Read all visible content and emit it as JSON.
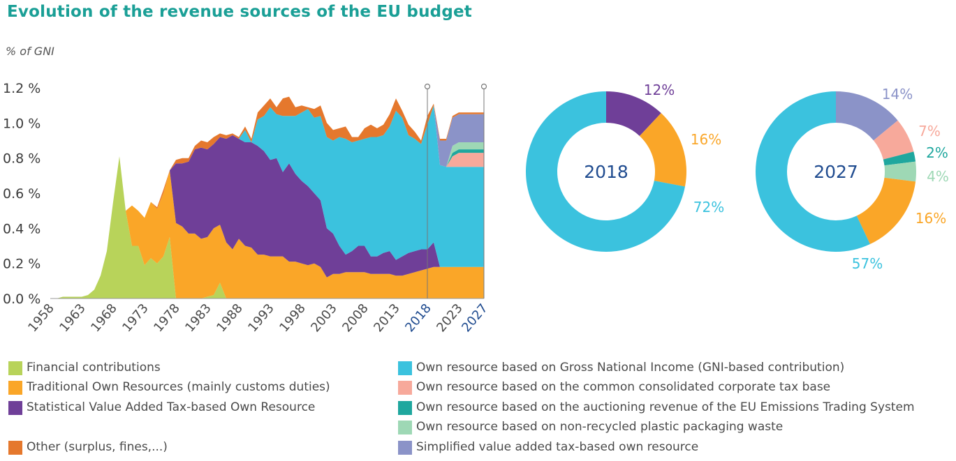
{
  "title": "Evolution of the revenue sources of the EU budget",
  "unit_label": "% of GNI",
  "colors": {
    "financial": "#b8d35a",
    "tor": "#faa628",
    "vat": "#6f3f98",
    "other": "#e5782d",
    "gni": "#3bc2de",
    "ccctb": "#f7a99b",
    "ets": "#1fa79e",
    "plastic": "#9ed8b5",
    "svat": "#8b93c8",
    "year_highlight": "#1f4b8f"
  },
  "chart_data": [
    {
      "type": "area",
      "stacked": true,
      "ylabel": "% of GNI",
      "ylim": [
        0,
        1.2
      ],
      "yticks": [
        "0.0 %",
        "0.2 %",
        "0.4 %",
        "0.6 %",
        "0.8 %",
        "1.0 %",
        "1.2 %"
      ],
      "ytick_values": [
        0,
        0.2,
        0.4,
        0.6,
        0.8,
        1.0,
        1.2
      ],
      "xticks": [
        "1958",
        "1963",
        "1968",
        "1973",
        "1978",
        "1983",
        "1988",
        "1993",
        "1998",
        "2003",
        "2008",
        "2013",
        "2018",
        "2023",
        "2027"
      ],
      "xtick_values": [
        1958,
        1963,
        1968,
        1973,
        1978,
        1983,
        1988,
        1993,
        1998,
        2003,
        2008,
        2013,
        2018,
        2023,
        2027
      ],
      "highlighted_years": [
        2018,
        2027
      ],
      "x": [
        1958,
        1959,
        1960,
        1961,
        1962,
        1963,
        1964,
        1965,
        1966,
        1967,
        1968,
        1969,
        1970,
        1971,
        1972,
        1973,
        1974,
        1975,
        1976,
        1977,
        1978,
        1979,
        1980,
        1981,
        1982,
        1983,
        1984,
        1985,
        1986,
        1987,
        1988,
        1989,
        1990,
        1991,
        1992,
        1993,
        1994,
        1995,
        1996,
        1997,
        1998,
        1999,
        2000,
        2001,
        2002,
        2003,
        2004,
        2005,
        2006,
        2007,
        2008,
        2009,
        2010,
        2011,
        2012,
        2013,
        2014,
        2015,
        2016,
        2017,
        2018,
        2019,
        2020,
        2021,
        2022,
        2023,
        2024,
        2025,
        2026,
        2027
      ],
      "series": [
        {
          "name": "Financial contributions",
          "key": "financial",
          "values": [
            0,
            0,
            0.01,
            0.01,
            0.01,
            0.01,
            0.02,
            0.05,
            0.13,
            0.27,
            0.55,
            0.81,
            0.5,
            0.3,
            0.3,
            0.19,
            0.23,
            0.2,
            0.24,
            0.35,
            0,
            0,
            0,
            0,
            0,
            0.01,
            0.02,
            0.09,
            0,
            0,
            0,
            0,
            0,
            0,
            0,
            0,
            0,
            0,
            0,
            0,
            0,
            0,
            0,
            0,
            0,
            0,
            0,
            0,
            0,
            0,
            0,
            0,
            0,
            0,
            0,
            0,
            0,
            0,
            0,
            0,
            0,
            0,
            0,
            0,
            0,
            0,
            0,
            0,
            0,
            0
          ]
        },
        {
          "name": "Traditional Own Resources (mainly customs duties)",
          "key": "tor",
          "values": [
            0,
            0,
            0,
            0,
            0,
            0,
            0,
            0,
            0,
            0,
            0,
            0,
            0,
            0.23,
            0.2,
            0.27,
            0.32,
            0.31,
            0.36,
            0.38,
            0.43,
            0.41,
            0.37,
            0.37,
            0.34,
            0.34,
            0.38,
            0.33,
            0.32,
            0.28,
            0.34,
            0.3,
            0.29,
            0.25,
            0.25,
            0.24,
            0.24,
            0.24,
            0.21,
            0.21,
            0.2,
            0.19,
            0.2,
            0.18,
            0.12,
            0.14,
            0.14,
            0.15,
            0.15,
            0.15,
            0.15,
            0.14,
            0.14,
            0.14,
            0.14,
            0.13,
            0.13,
            0.14,
            0.15,
            0.16,
            0.17,
            0.18,
            0.18,
            0.18,
            0.18,
            0.18,
            0.18,
            0.18,
            0.18,
            0.18
          ]
        },
        {
          "name": "Statistical Value Added Tax-based Own Resource",
          "key": "vat",
          "values": [
            0,
            0,
            0,
            0,
            0,
            0,
            0,
            0,
            0,
            0,
            0,
            0,
            0,
            0,
            0,
            0,
            0,
            0,
            0,
            0,
            0.34,
            0.36,
            0.41,
            0.48,
            0.52,
            0.5,
            0.48,
            0.5,
            0.59,
            0.65,
            0.57,
            0.59,
            0.6,
            0.62,
            0.59,
            0.55,
            0.56,
            0.48,
            0.56,
            0.5,
            0.47,
            0.45,
            0.4,
            0.38,
            0.28,
            0.23,
            0.16,
            0.1,
            0.12,
            0.15,
            0.15,
            0.1,
            0.1,
            0.12,
            0.13,
            0.09,
            0.11,
            0.12,
            0.12,
            0.12,
            0.11,
            0.14,
            0,
            0,
            0,
            0,
            0,
            0,
            0,
            0
          ]
        },
        {
          "name": "Own resource based on Gross National Income (GNI-based contribution)",
          "key": "gni",
          "values": [
            0,
            0,
            0,
            0,
            0,
            0,
            0,
            0,
            0,
            0,
            0,
            0,
            0,
            0,
            0,
            0,
            0,
            0,
            0,
            0,
            0,
            0,
            0,
            0,
            0,
            0,
            0,
            0,
            0,
            0,
            0,
            0.07,
            0,
            0.15,
            0.2,
            0.3,
            0.25,
            0.32,
            0.27,
            0.33,
            0.39,
            0.44,
            0.43,
            0.48,
            0.52,
            0.53,
            0.62,
            0.66,
            0.62,
            0.6,
            0.61,
            0.68,
            0.68,
            0.67,
            0.71,
            0.85,
            0.79,
            0.67,
            0.64,
            0.6,
            0.71,
            0.78,
            0.58,
            0.57,
            0.57,
            0.57,
            0.57,
            0.57,
            0.57,
            0.57
          ]
        },
        {
          "name": "Own resource based on the common consolidated corporate tax base",
          "key": "ccctb",
          "values": [
            0,
            0,
            0,
            0,
            0,
            0,
            0,
            0,
            0,
            0,
            0,
            0,
            0,
            0,
            0,
            0,
            0,
            0,
            0,
            0,
            0,
            0,
            0,
            0,
            0,
            0,
            0,
            0,
            0,
            0,
            0,
            0,
            0,
            0,
            0,
            0,
            0,
            0,
            0,
            0,
            0,
            0,
            0,
            0,
            0,
            0,
            0,
            0,
            0,
            0,
            0,
            0,
            0,
            0,
            0,
            0,
            0,
            0,
            0,
            0,
            0,
            0,
            0,
            0,
            0.06,
            0.08,
            0.08,
            0.08,
            0.08,
            0.08
          ]
        },
        {
          "name": "Own resource based on the auctioning revenue of the EU Emissions Trading System",
          "key": "ets",
          "values": [
            0,
            0,
            0,
            0,
            0,
            0,
            0,
            0,
            0,
            0,
            0,
            0,
            0,
            0,
            0,
            0,
            0,
            0,
            0,
            0,
            0,
            0,
            0,
            0,
            0,
            0,
            0,
            0,
            0,
            0,
            0,
            0,
            0,
            0,
            0,
            0,
            0,
            0,
            0,
            0,
            0,
            0,
            0,
            0,
            0,
            0,
            0,
            0,
            0,
            0,
            0,
            0,
            0,
            0,
            0,
            0,
            0,
            0,
            0,
            0,
            0,
            0,
            0,
            0,
            0.02,
            0.02,
            0.02,
            0.02,
            0.02,
            0.02
          ]
        },
        {
          "name": "Own resource based on non-recycled plastic packaging waste",
          "key": "plastic",
          "values": [
            0,
            0,
            0,
            0,
            0,
            0,
            0,
            0,
            0,
            0,
            0,
            0,
            0,
            0,
            0,
            0,
            0,
            0,
            0,
            0,
            0,
            0,
            0,
            0,
            0,
            0,
            0,
            0,
            0,
            0,
            0,
            0,
            0,
            0,
            0,
            0,
            0,
            0,
            0,
            0,
            0,
            0,
            0,
            0,
            0,
            0,
            0,
            0,
            0,
            0,
            0,
            0,
            0,
            0,
            0,
            0,
            0,
            0,
            0,
            0,
            0,
            0,
            0,
            0,
            0.04,
            0.04,
            0.04,
            0.04,
            0.04,
            0.04
          ]
        },
        {
          "name": "Simplified value added tax-based own resource",
          "key": "svat",
          "values": [
            0,
            0,
            0,
            0,
            0,
            0,
            0,
            0,
            0,
            0,
            0,
            0,
            0,
            0,
            0,
            0,
            0,
            0,
            0,
            0,
            0,
            0,
            0,
            0,
            0,
            0,
            0,
            0,
            0,
            0,
            0,
            0,
            0,
            0,
            0,
            0,
            0,
            0,
            0,
            0,
            0,
            0,
            0,
            0,
            0,
            0,
            0,
            0,
            0,
            0,
            0,
            0,
            0,
            0,
            0,
            0,
            0,
            0,
            0,
            0,
            0,
            0,
            0.14,
            0.15,
            0.16,
            0.16,
            0.16,
            0.16,
            0.16,
            0.16
          ]
        },
        {
          "name": "Other (surplus, fines,...)",
          "key": "other",
          "values": [
            0,
            0,
            0,
            0,
            0,
            0,
            0,
            0,
            0,
            0,
            0,
            0,
            0,
            0,
            0,
            0,
            0,
            0.01,
            0.02,
            0,
            0.02,
            0.03,
            0.02,
            0.02,
            0.04,
            0.04,
            0.04,
            0.02,
            0.02,
            0.01,
            0.01,
            0.02,
            0.02,
            0.04,
            0.06,
            0.05,
            0.04,
            0.1,
            0.11,
            0.05,
            0.04,
            0.01,
            0.05,
            0.06,
            0.08,
            0.06,
            0.05,
            0.07,
            0.03,
            0.02,
            0.06,
            0.07,
            0.05,
            0.06,
            0.07,
            0.07,
            0.04,
            0.06,
            0.04,
            0.02,
            0.05,
            0.01,
            0.01,
            0.01,
            0.01,
            0.01,
            0.01,
            0.01,
            0.01,
            0.01
          ]
        }
      ],
      "legend": [
        {
          "label": "Financial contributions",
          "key": "financial"
        },
        {
          "label": "Traditional Own Resources (mainly customs duties)",
          "key": "tor"
        },
        {
          "label": "Statistical Value Added Tax-based Own Resource",
          "key": "vat"
        },
        {
          "label": "Other (surplus, fines,...)",
          "key": "other"
        },
        {
          "label": "Own resource based on Gross National Income (GNI-based contribution)",
          "key": "gni"
        },
        {
          "label": "Own resource based on the common consolidated corporate tax base",
          "key": "ccctb"
        },
        {
          "label": "Own resource based on the auctioning revenue of the EU Emissions Trading System",
          "key": "ets"
        },
        {
          "label": "Own resource based on non-recycled plastic packaging waste",
          "key": "plastic"
        },
        {
          "label": "Simplified value added tax-based own resource",
          "key": "svat"
        }
      ]
    },
    {
      "type": "pie",
      "donut": true,
      "title": "2018",
      "slices": [
        {
          "key": "gni",
          "value": 72,
          "label": "72%"
        },
        {
          "key": "vat",
          "value": 12,
          "label": "12%"
        },
        {
          "key": "tor",
          "value": 16,
          "label": "16%"
        }
      ],
      "start_slice": "vat"
    },
    {
      "type": "pie",
      "donut": true,
      "title": "2027",
      "slices": [
        {
          "key": "svat",
          "value": 14,
          "label": "14%"
        },
        {
          "key": "ccctb",
          "value": 7,
          "label": "7%"
        },
        {
          "key": "ets",
          "value": 2,
          "label": "2%"
        },
        {
          "key": "plastic",
          "value": 4,
          "label": "4%"
        },
        {
          "key": "tor",
          "value": 16,
          "label": "16%"
        },
        {
          "key": "gni",
          "value": 57,
          "label": "57%"
        }
      ],
      "start_slice": "svat"
    }
  ]
}
